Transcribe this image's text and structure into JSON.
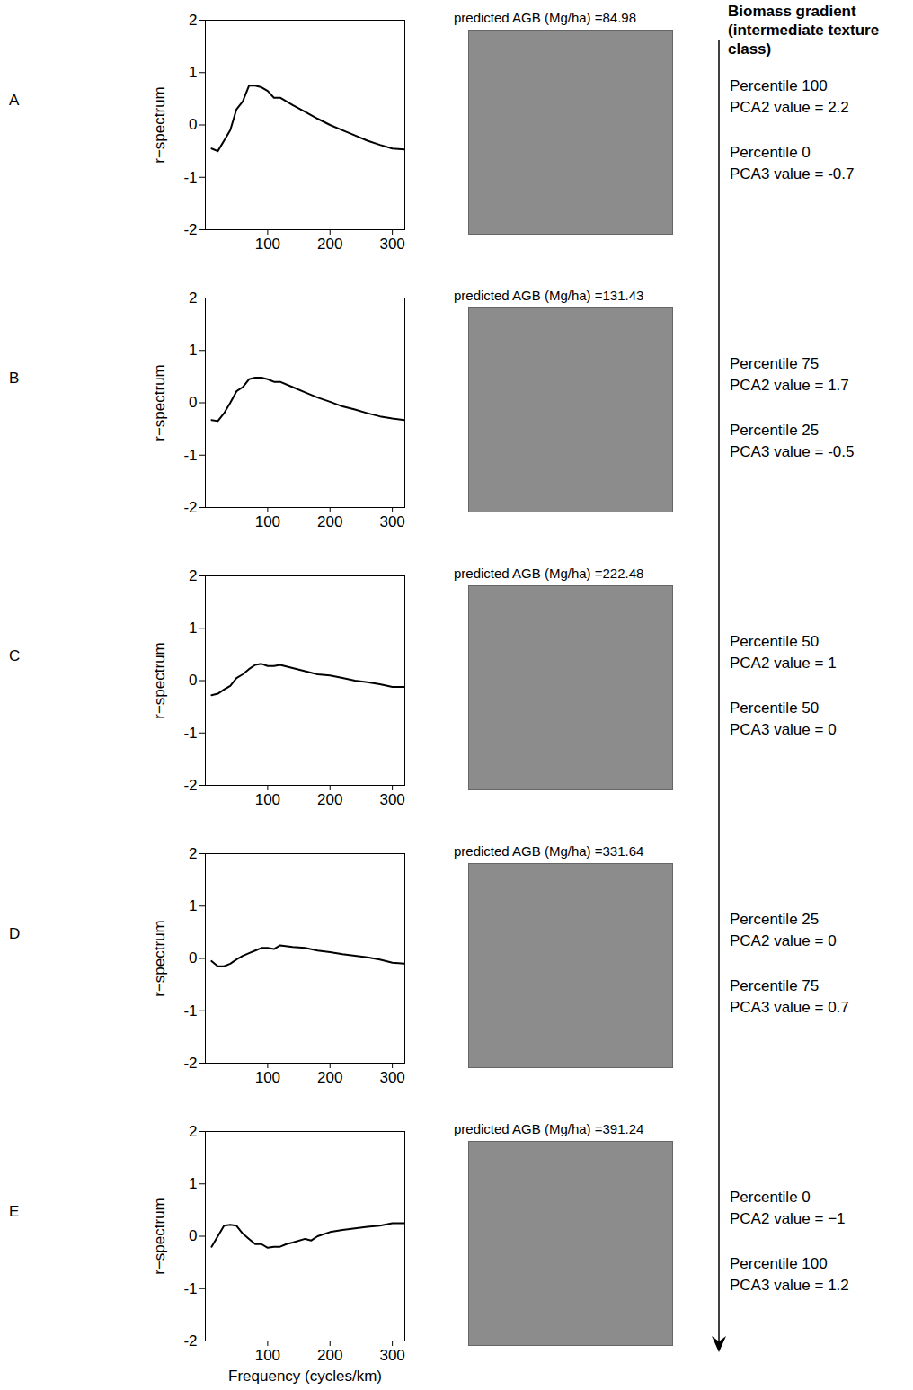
{
  "gradient_label": "Biomass gradient (intermediate texture class)",
  "chart_data": [
    {
      "type": "line",
      "panel": "A",
      "y_label": "r−spectrum",
      "image_title": "predicted AGB (Mg/ha) =84.98",
      "notes": [
        "Percentile 100",
        "PCA2 value = 2.2",
        "Percentile 0",
        "PCA3 value = -0.7"
      ],
      "xlim": [
        0,
        320
      ],
      "xticks": [
        100,
        200,
        300
      ],
      "ylim": [
        -2,
        2
      ],
      "yticks": [
        -2,
        -1,
        0,
        1,
        2
      ],
      "color": "#000000",
      "x": [
        10,
        20,
        30,
        40,
        50,
        60,
        70,
        80,
        90,
        100,
        110,
        120,
        140,
        160,
        180,
        200,
        220,
        240,
        260,
        280,
        300,
        320
      ],
      "values": [
        -0.45,
        -0.5,
        -0.3,
        -0.1,
        0.3,
        0.45,
        0.75,
        0.75,
        0.72,
        0.65,
        0.52,
        0.52,
        0.38,
        0.25,
        0.12,
        0.0,
        -0.1,
        -0.2,
        -0.3,
        -0.38,
        -0.45,
        -0.47
      ]
    },
    {
      "type": "line",
      "panel": "B",
      "y_label": "r−spectrum",
      "image_title": "predicted AGB (Mg/ha) =131.43",
      "notes": [
        "Percentile 75",
        "PCA2 value = 1.7",
        "Percentile 25",
        "PCA3 value = -0.5"
      ],
      "xlim": [
        0,
        320
      ],
      "xticks": [
        100,
        200,
        300
      ],
      "ylim": [
        -2,
        2
      ],
      "yticks": [
        -2,
        -1,
        0,
        1,
        2
      ],
      "color": "#000000",
      "x": [
        10,
        20,
        30,
        40,
        50,
        60,
        70,
        80,
        90,
        100,
        110,
        120,
        140,
        160,
        180,
        200,
        220,
        240,
        260,
        280,
        300,
        320
      ],
      "values": [
        -0.33,
        -0.35,
        -0.2,
        0.0,
        0.22,
        0.3,
        0.45,
        0.48,
        0.48,
        0.45,
        0.4,
        0.4,
        0.3,
        0.2,
        0.1,
        0.02,
        -0.07,
        -0.13,
        -0.2,
        -0.26,
        -0.3,
        -0.33
      ]
    },
    {
      "type": "line",
      "panel": "C",
      "y_label": "r−spectrum",
      "image_title": "predicted AGB (Mg/ha) =222.48",
      "notes": [
        "Percentile 50",
        "PCA2 value = 1",
        "Percentile 50",
        "PCA3 value = 0"
      ],
      "xlim": [
        0,
        320
      ],
      "xticks": [
        100,
        200,
        300
      ],
      "ylim": [
        -2,
        2
      ],
      "yticks": [
        -2,
        -1,
        0,
        1,
        2
      ],
      "color": "#000000",
      "x": [
        10,
        20,
        30,
        40,
        50,
        60,
        70,
        80,
        90,
        100,
        110,
        120,
        140,
        160,
        180,
        200,
        220,
        240,
        260,
        280,
        300,
        320
      ],
      "values": [
        -0.28,
        -0.25,
        -0.17,
        -0.1,
        0.05,
        0.12,
        0.22,
        0.3,
        0.32,
        0.28,
        0.28,
        0.3,
        0.24,
        0.18,
        0.12,
        0.1,
        0.05,
        0.0,
        -0.03,
        -0.07,
        -0.12,
        -0.12
      ]
    },
    {
      "type": "line",
      "panel": "D",
      "y_label": "r−spectrum",
      "image_title": "predicted AGB (Mg/ha) =331.64",
      "notes": [
        "Percentile 25",
        "PCA2 value = 0",
        "Percentile 75",
        "PCA3 value = 0.7"
      ],
      "xlim": [
        0,
        320
      ],
      "xticks": [
        100,
        200,
        300
      ],
      "ylim": [
        -2,
        2
      ],
      "yticks": [
        -2,
        -1,
        0,
        1,
        2
      ],
      "color": "#000000",
      "x": [
        10,
        20,
        30,
        40,
        50,
        60,
        70,
        80,
        90,
        100,
        110,
        120,
        140,
        160,
        180,
        200,
        220,
        240,
        260,
        280,
        300,
        320
      ],
      "values": [
        -0.05,
        -0.15,
        -0.15,
        -0.1,
        -0.02,
        0.05,
        0.1,
        0.15,
        0.2,
        0.2,
        0.18,
        0.25,
        0.22,
        0.2,
        0.15,
        0.12,
        0.08,
        0.05,
        0.02,
        -0.02,
        -0.08,
        -0.1
      ]
    },
    {
      "type": "line",
      "panel": "E",
      "y_label": "r−spectrum",
      "x_label": "Frequency (cycles/km)",
      "image_title": "predicted AGB (Mg/ha) =391.24",
      "notes": [
        "Percentile 0",
        "PCA2 value = −1",
        "Percentile 100",
        "PCA3 value = 1.2"
      ],
      "xlim": [
        0,
        320
      ],
      "xticks": [
        100,
        200,
        300
      ],
      "ylim": [
        -2,
        2
      ],
      "yticks": [
        -2,
        -1,
        0,
        1,
        2
      ],
      "color": "#000000",
      "x": [
        10,
        20,
        30,
        40,
        50,
        60,
        70,
        80,
        90,
        100,
        110,
        120,
        130,
        140,
        160,
        170,
        180,
        200,
        220,
        240,
        260,
        280,
        300,
        320
      ],
      "values": [
        -0.2,
        0.0,
        0.2,
        0.22,
        0.2,
        0.05,
        -0.05,
        -0.15,
        -0.15,
        -0.22,
        -0.2,
        -0.2,
        -0.15,
        -0.12,
        -0.05,
        -0.08,
        0.0,
        0.08,
        0.12,
        0.15,
        0.18,
        0.2,
        0.25,
        0.25
      ]
    }
  ]
}
